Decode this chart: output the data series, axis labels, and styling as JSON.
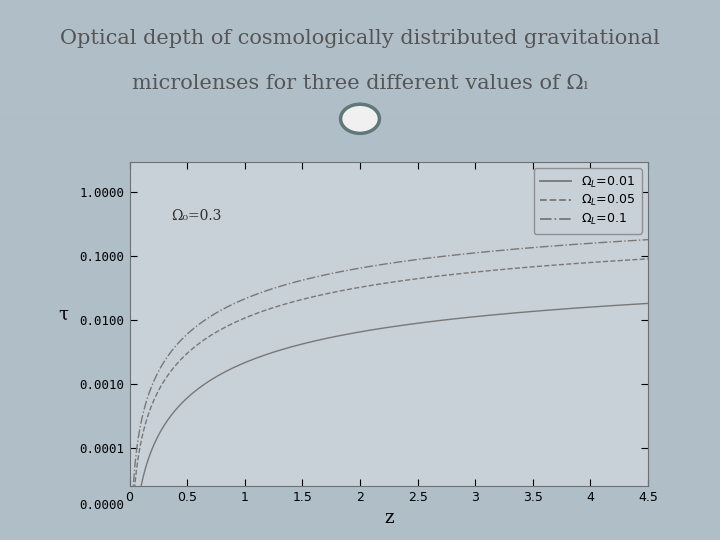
{
  "title_line1": "Optical depth of cosmologically distributed gravitational",
  "title_line2": "microlenses for three different values of Ωₗ",
  "bg_color": "#b0bec8",
  "title_bg_color": "#f0f0f0",
  "plot_bg_color": "#c8d0d8",
  "curve_color": "#787878",
  "xlabel": "z",
  "ylabel": "τ",
  "xlim": [
    0,
    4.5
  ],
  "annotation": "Ω₀=0.3",
  "legend_labels": [
    "Ω_L=0.01",
    "Ω_L=0.05",
    "Ω_L=0.1"
  ],
  "omega_L_values": [
    0.01,
    0.05,
    0.1
  ],
  "omega_0": 0.3,
  "ytick_vals": [
    0.0001,
    0.001,
    0.01,
    0.1,
    1.0
  ],
  "ytick_labels": [
    "0.0001",
    "0.0010",
    "0.0100",
    "0.1000",
    "1.0000"
  ],
  "xticks": [
    0,
    0.5,
    1,
    1.5,
    2,
    2.5,
    3,
    3.5,
    4,
    4.5
  ],
  "line_styles": [
    "-",
    "--",
    "-."
  ],
  "line_width": 1.0,
  "title_fontsize": 15,
  "axis_fontsize": 11,
  "tick_fontsize": 9,
  "annotation_fontsize": 10,
  "legend_fontsize": 9,
  "circle_color": "#607878"
}
